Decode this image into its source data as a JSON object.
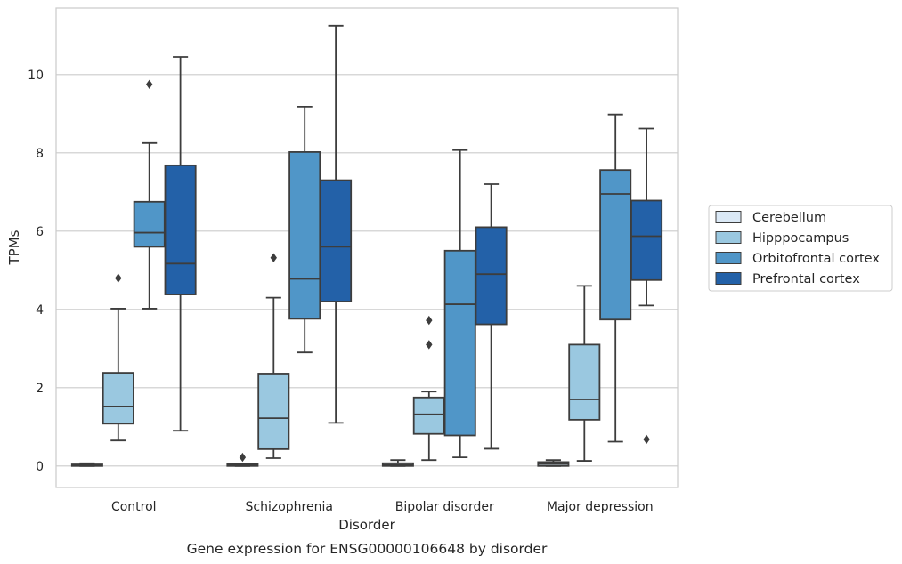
{
  "chart_data": {
    "type": "box",
    "caption": "Gene expression for ENSG00000106648 by disorder",
    "xlabel": "Disorder",
    "ylabel": "TPMs",
    "ylim": [
      -0.55,
      11.7
    ],
    "yticks": [
      0,
      2,
      4,
      6,
      8,
      10
    ],
    "grid": "horizontal",
    "legend_position": "right",
    "categories": [
      "Control",
      "Schizophrenia",
      "Bipolar disorder",
      "Major depression"
    ],
    "series": [
      {
        "name": "Cerebellum",
        "color": "#dbe9f6",
        "boxes": [
          {
            "whisker_low": 0.0,
            "q1": 0.0,
            "median": 0.02,
            "q3": 0.04,
            "whisker_high": 0.07,
            "outliers": []
          },
          {
            "whisker_low": 0.0,
            "q1": 0.0,
            "median": 0.02,
            "q3": 0.06,
            "whisker_high": 0.06,
            "outliers": [
              0.22
            ]
          },
          {
            "whisker_low": 0.0,
            "q1": 0.0,
            "median": 0.03,
            "q3": 0.07,
            "whisker_high": 0.15,
            "outliers": []
          },
          {
            "whisker_low": 0.0,
            "q1": 0.0,
            "median": 0.05,
            "q3": 0.1,
            "whisker_high": 0.15,
            "outliers": []
          }
        ]
      },
      {
        "name": "Hipppocampus",
        "color": "#9ac8e0",
        "boxes": [
          {
            "whisker_low": 0.65,
            "q1": 1.08,
            "median": 1.52,
            "q3": 2.38,
            "whisker_high": 4.02,
            "outliers": [
              4.8
            ]
          },
          {
            "whisker_low": 0.2,
            "q1": 0.43,
            "median": 1.22,
            "q3": 2.36,
            "whisker_high": 4.3,
            "outliers": [
              5.32
            ]
          },
          {
            "whisker_low": 0.15,
            "q1": 0.82,
            "median": 1.32,
            "q3": 1.75,
            "whisker_high": 1.9,
            "outliers": [
              3.1,
              3.72
            ]
          },
          {
            "whisker_low": 0.13,
            "q1": 1.18,
            "median": 1.7,
            "q3": 3.1,
            "whisker_high": 4.6,
            "outliers": []
          }
        ]
      },
      {
        "name": "Orbitofrontal cortex",
        "color": "#5096c8",
        "boxes": [
          {
            "whisker_low": 4.02,
            "q1": 5.6,
            "median": 5.96,
            "q3": 6.75,
            "whisker_high": 8.25,
            "outliers": [
              9.75
            ]
          },
          {
            "whisker_low": 2.9,
            "q1": 3.76,
            "median": 4.78,
            "q3": 8.02,
            "whisker_high": 9.18,
            "outliers": []
          },
          {
            "whisker_low": 0.22,
            "q1": 0.78,
            "median": 4.13,
            "q3": 5.5,
            "whisker_high": 8.07,
            "outliers": []
          },
          {
            "whisker_low": 0.62,
            "q1": 3.74,
            "median": 6.95,
            "q3": 7.56,
            "whisker_high": 8.98,
            "outliers": []
          }
        ]
      },
      {
        "name": "Prefrontal cortex",
        "color": "#2361a8",
        "boxes": [
          {
            "whisker_low": 0.9,
            "q1": 4.38,
            "median": 5.17,
            "q3": 7.68,
            "whisker_high": 10.45,
            "outliers": []
          },
          {
            "whisker_low": 1.1,
            "q1": 4.2,
            "median": 5.6,
            "q3": 7.3,
            "whisker_high": 11.25,
            "outliers": []
          },
          {
            "whisker_low": 0.44,
            "q1": 3.62,
            "median": 4.9,
            "q3": 6.1,
            "whisker_high": 7.2,
            "outliers": []
          },
          {
            "whisker_low": 4.1,
            "q1": 4.75,
            "median": 5.87,
            "q3": 6.78,
            "whisker_high": 8.62,
            "outliers": [
              0.68
            ]
          }
        ]
      }
    ]
  }
}
